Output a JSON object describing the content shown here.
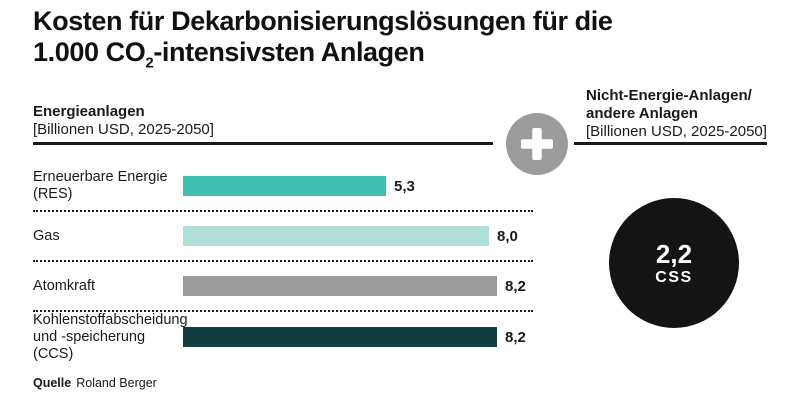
{
  "title": {
    "line1": "Kosten für Dekarbonisierungslösungen für die",
    "line2_before_sub": "1.000 CO",
    "line2_sub": "2",
    "line2_after_sub": "-intensivsten Anlagen"
  },
  "left_section": {
    "heading": "Energieanlagen",
    "subheading": "[Billionen USD, 2025-2050]",
    "rows": [
      {
        "label_line1": "Erneuerbare Energie",
        "label_line2": "(RES)",
        "value": 5.3,
        "value_label": "5,3",
        "color": "#40bfb1"
      },
      {
        "label_line1": "Gas",
        "label_line2": "",
        "value": 8.0,
        "value_label": "8,0",
        "color": "#b0dfd9"
      },
      {
        "label_line1": "Atomkraft",
        "label_line2": "",
        "value": 8.2,
        "value_label": "8,2",
        "color": "#9b9b9b"
      },
      {
        "label_line1": "Kohlenstoffabscheidung",
        "label_line2": "und -speicherung (CCS)",
        "value": 8.2,
        "value_label": "8,2",
        "color": "#113e3f"
      }
    ]
  },
  "right_section": {
    "heading_line1": "Nicht-Energie-Anlagen/",
    "heading_line2": "andere Anlagen",
    "subheading": "[Billionen USD, 2025-2050]",
    "circle": {
      "value_label": "2,2",
      "category": "CSS",
      "color": "#141414",
      "text_color": "#ffffff"
    }
  },
  "plus_icon": {
    "meaning": "plus",
    "color": "#9b9b9b"
  },
  "source": {
    "label": "Quelle",
    "text": "Roland Berger"
  },
  "chart_data": {
    "type": "bar",
    "orientation": "horizontal",
    "title": "Kosten für Dekarbonisierungslösungen für die 1.000 CO2-intensivsten Anlagen",
    "grid": false,
    "xlim": [
      0,
      8.5
    ],
    "panels": [
      {
        "name": "Energieanlagen",
        "unit": "Billionen USD, 2025-2050",
        "categories": [
          "Erneuerbare Energie (RES)",
          "Gas",
          "Atomkraft",
          "Kohlenstoffabscheidung und -speicherung (CCS)"
        ],
        "values": [
          5.3,
          8.0,
          8.2,
          8.2
        ],
        "value_labels": [
          "5,3",
          "8,0",
          "8,2",
          "8,2"
        ],
        "colors": [
          "#40bfb1",
          "#b0dfd9",
          "#9b9b9b",
          "#113e3f"
        ]
      },
      {
        "name": "Nicht-Energie-Anlagen/andere Anlagen",
        "unit": "Billionen USD, 2025-2050",
        "type": "bubble",
        "categories": [
          "CSS"
        ],
        "values": [
          2.2
        ],
        "value_labels": [
          "2,2"
        ],
        "colors": [
          "#141414"
        ]
      }
    ],
    "source": "Roland Berger"
  }
}
